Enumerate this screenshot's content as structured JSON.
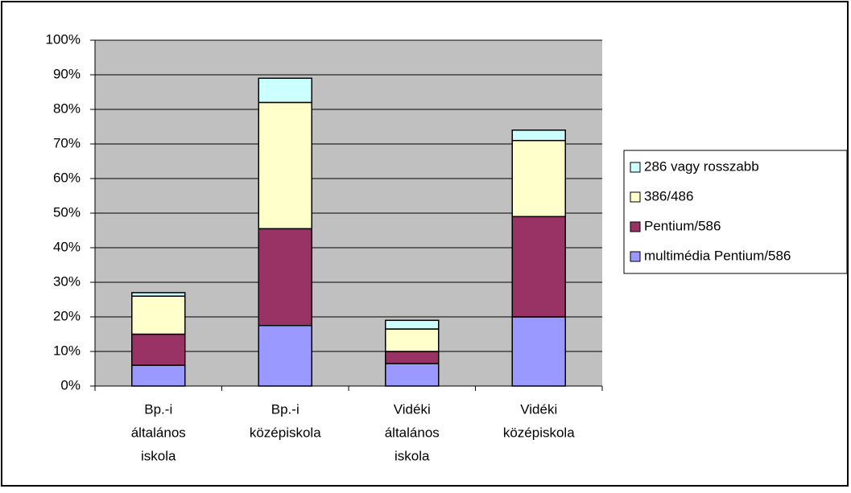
{
  "chart_data": {
    "type": "stacked_bar",
    "categories": [
      [
        "Bp.-i",
        "általános",
        "iskola"
      ],
      [
        "Bp.-i",
        "középiskola"
      ],
      [
        "Vidéki",
        "általános",
        "iskola"
      ],
      [
        "Vidéki",
        "középiskola"
      ]
    ],
    "series": [
      {
        "name": "multimédia Pentium/586",
        "color": "#9999ff",
        "values": [
          6,
          17.5,
          6.5,
          20
        ]
      },
      {
        "name": "Pentium/586",
        "color": "#993366",
        "values": [
          9,
          28,
          3.5,
          29
        ]
      },
      {
        "name": "386/486",
        "color": "#ffffcc",
        "values": [
          11,
          36.5,
          6.5,
          22
        ]
      },
      {
        "name": "286 vagy rosszabb",
        "color": "#ccffff",
        "values": [
          1,
          7,
          2.5,
          3
        ]
      }
    ],
    "ylim": [
      0,
      100
    ],
    "yticks": [
      {
        "value": 0,
        "label": "0%"
      },
      {
        "value": 10,
        "label": "10%"
      },
      {
        "value": 20,
        "label": "20%"
      },
      {
        "value": 30,
        "label": "30%"
      },
      {
        "value": 40,
        "label": "40%"
      },
      {
        "value": 50,
        "label": "50%"
      },
      {
        "value": 60,
        "label": "60%"
      },
      {
        "value": 70,
        "label": "70%"
      },
      {
        "value": 80,
        "label": "80%"
      },
      {
        "value": 90,
        "label": "90%"
      },
      {
        "value": 100,
        "label": "100%"
      }
    ],
    "grid": true,
    "legend": "right"
  }
}
